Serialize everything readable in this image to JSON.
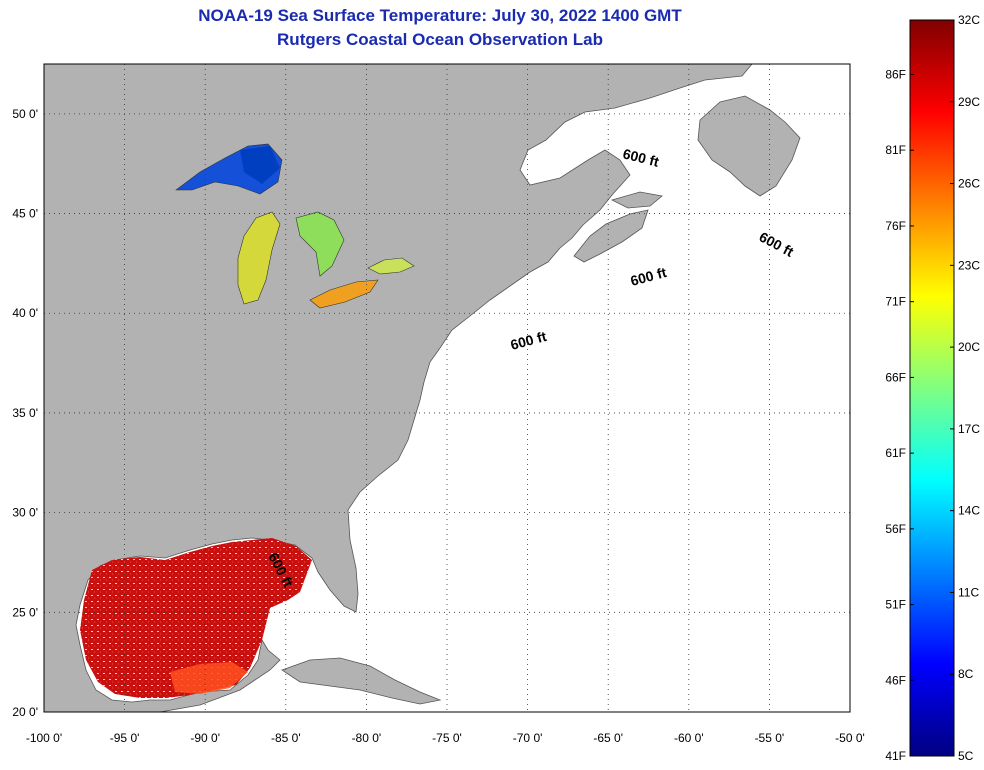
{
  "header": {
    "title": "NOAA-19 Sea Surface Temperature:  July 30, 2022 1400 GMT",
    "subtitle": "Rutgers Coastal Ocean Observation Lab"
  },
  "map": {
    "lon_range": [
      -100,
      -50
    ],
    "lat_range": [
      20,
      52.5
    ],
    "x_ticks": [
      "-100 0'",
      "-95 0'",
      "-90 0'",
      "-85 0'",
      "-80 0'",
      "-75 0'",
      "-70 0'",
      "-65 0'",
      "-60 0'",
      "-55 0'",
      "-50 0'"
    ],
    "y_ticks": [
      "50 0'",
      "45 0'",
      "40 0'",
      "35 0'",
      "30 0'",
      "25 0'",
      "20 0'"
    ],
    "grid": "dotted",
    "land_color": "#b2b2b2",
    "ocean_color": "#ffffff",
    "contour_label": "600 ft",
    "contour_label_count": 5
  },
  "colorbar": {
    "celsius_labels": [
      "32C",
      "29C",
      "26C",
      "23C",
      "20C",
      "17C",
      "14C",
      "11C",
      "8C",
      "5C"
    ],
    "fahrenheit_labels": [
      "86F",
      "81F",
      "76F",
      "71F",
      "66F",
      "61F",
      "56F",
      "51F",
      "46F",
      "41F"
    ],
    "range_c": [
      5,
      32
    ],
    "colors": [
      "#000080",
      "#0000ff",
      "#0080ff",
      "#00ffff",
      "#80ff80",
      "#ffff00",
      "#ff8000",
      "#ff0000",
      "#800000"
    ]
  }
}
